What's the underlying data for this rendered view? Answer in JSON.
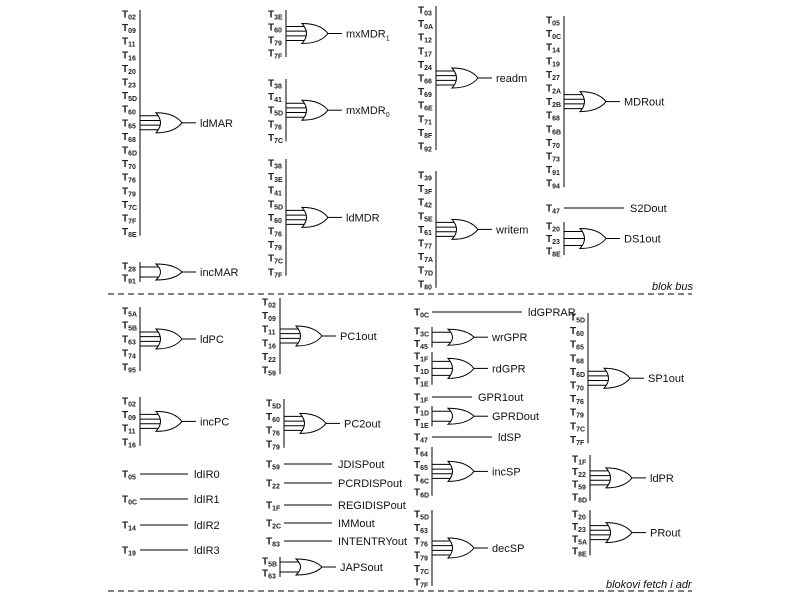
{
  "sections": {
    "bus_label": "blok bus",
    "fetch_label": "blokovi fetch i adr"
  },
  "blocks": [
    {
      "id": "ldMAR",
      "gate": "or",
      "output": "ldMAR",
      "inputs": [
        "02",
        "09",
        "11",
        "16",
        "20",
        "23",
        "5D",
        "60",
        "65",
        "68",
        "6D",
        "70",
        "76",
        "79",
        "7C",
        "7F",
        "8E"
      ]
    },
    {
      "id": "incMAR",
      "gate": "or",
      "output": "incMAR",
      "inputs": [
        "28",
        "91"
      ]
    },
    {
      "id": "mxMDR1",
      "gate": "or",
      "output": "mxMDR",
      "output_sub": "1",
      "inputs": [
        "3E",
        "60",
        "79",
        "7F"
      ]
    },
    {
      "id": "mxMDR0",
      "gate": "or",
      "output": "mxMDR",
      "output_sub": "0",
      "inputs": [
        "38",
        "41",
        "5D",
        "76",
        "7C"
      ]
    },
    {
      "id": "ldMDR",
      "gate": "or",
      "output": "ldMDR",
      "inputs": [
        "38",
        "3E",
        "41",
        "5D",
        "60",
        "76",
        "79",
        "7C",
        "7F"
      ]
    },
    {
      "id": "readm",
      "gate": "or",
      "output": "readm",
      "inputs": [
        "03",
        "0A",
        "12",
        "17",
        "24",
        "66",
        "69",
        "6E",
        "71",
        "8F",
        "92"
      ]
    },
    {
      "id": "writem",
      "gate": "or",
      "output": "writem",
      "inputs": [
        "39",
        "3F",
        "42",
        "5E",
        "61",
        "77",
        "7A",
        "7D",
        "80"
      ]
    },
    {
      "id": "MDRout",
      "gate": "or",
      "output": "MDRout",
      "inputs": [
        "05",
        "0C",
        "14",
        "19",
        "27",
        "2A",
        "2B",
        "68",
        "6B",
        "70",
        "73",
        "91",
        "94"
      ]
    },
    {
      "id": "S2Dout",
      "gate": "wire",
      "output": "S2Dout",
      "inputs": [
        "47"
      ]
    },
    {
      "id": "DS1out",
      "gate": "or",
      "output": "DS1out",
      "inputs": [
        "20",
        "23",
        "8E"
      ]
    },
    {
      "id": "ldPC",
      "gate": "or",
      "output": "ldPC",
      "inputs": [
        "5A",
        "5B",
        "63",
        "74",
        "95"
      ]
    },
    {
      "id": "incPC",
      "gate": "or",
      "output": "incPC",
      "inputs": [
        "02",
        "09",
        "11",
        "16"
      ]
    },
    {
      "id": "ldIR0",
      "gate": "wire",
      "output": "ldIR0",
      "inputs": [
        "05"
      ]
    },
    {
      "id": "ldIR1",
      "gate": "wire",
      "output": "ldIR1",
      "inputs": [
        "0C"
      ]
    },
    {
      "id": "ldIR2",
      "gate": "wire",
      "output": "ldIR2",
      "inputs": [
        "14"
      ]
    },
    {
      "id": "ldIR3",
      "gate": "wire",
      "output": "ldIR3",
      "inputs": [
        "19"
      ]
    },
    {
      "id": "PC1out",
      "gate": "or",
      "output": "PC1out",
      "inputs": [
        "02",
        "09",
        "11",
        "16",
        "22",
        "59"
      ]
    },
    {
      "id": "PC2out",
      "gate": "or",
      "output": "PC2out",
      "inputs": [
        "5D",
        "60",
        "76",
        "79"
      ]
    },
    {
      "id": "JDISPout",
      "gate": "wire",
      "output": "JDISPout",
      "inputs": [
        "59"
      ]
    },
    {
      "id": "PCRDISPout",
      "gate": "wire",
      "output": "PCRDISPout",
      "inputs": [
        "22"
      ]
    },
    {
      "id": "REGIDISPout",
      "gate": "wire",
      "output": "REGIDISPout",
      "inputs": [
        "1F"
      ]
    },
    {
      "id": "IMMout",
      "gate": "wire",
      "output": "IMMout",
      "inputs": [
        "2C"
      ]
    },
    {
      "id": "INTENTRYout",
      "gate": "wire",
      "output": "INTENTRYout",
      "inputs": [
        "83"
      ]
    },
    {
      "id": "JAPSout",
      "gate": "or",
      "output": "JAPSout",
      "inputs": [
        "5B",
        "63"
      ]
    },
    {
      "id": "ldGPRAR",
      "gate": "wire",
      "output": "ldGPRAR",
      "inputs": [
        "0C"
      ]
    },
    {
      "id": "wrGPR",
      "gate": "or",
      "output": "wrGPR",
      "inputs": [
        "3C",
        "45"
      ]
    },
    {
      "id": "rdGPR",
      "gate": "or",
      "output": "rdGPR",
      "inputs": [
        "1F",
        "1D",
        "1E"
      ]
    },
    {
      "id": "GPR1out",
      "gate": "wire",
      "output": "GPR1out",
      "inputs": [
        "1F"
      ]
    },
    {
      "id": "GPRDout",
      "gate": "or",
      "output": "GPRDout",
      "inputs": [
        "1D",
        "1E"
      ]
    },
    {
      "id": "ldSP",
      "gate": "wire",
      "output": "ldSP",
      "inputs": [
        "47"
      ]
    },
    {
      "id": "incSP",
      "gate": "or",
      "output": "incSP",
      "inputs": [
        "64",
        "65",
        "6C",
        "6D"
      ]
    },
    {
      "id": "decSP",
      "gate": "or",
      "output": "decSP",
      "inputs": [
        "5D",
        "63",
        "76",
        "79",
        "7C",
        "7F"
      ]
    },
    {
      "id": "SP1out",
      "gate": "or",
      "output": "SP1out",
      "inputs": [
        "5D",
        "60",
        "65",
        "68",
        "6D",
        "70",
        "76",
        "79",
        "7C",
        "7F"
      ]
    },
    {
      "id": "ldPR",
      "gate": "or",
      "output": "ldPR",
      "inputs": [
        "1F",
        "22",
        "59",
        "8D"
      ]
    },
    {
      "id": "PRout",
      "gate": "or",
      "output": "PRout",
      "inputs": [
        "20",
        "23",
        "5A",
        "8E"
      ]
    }
  ]
}
